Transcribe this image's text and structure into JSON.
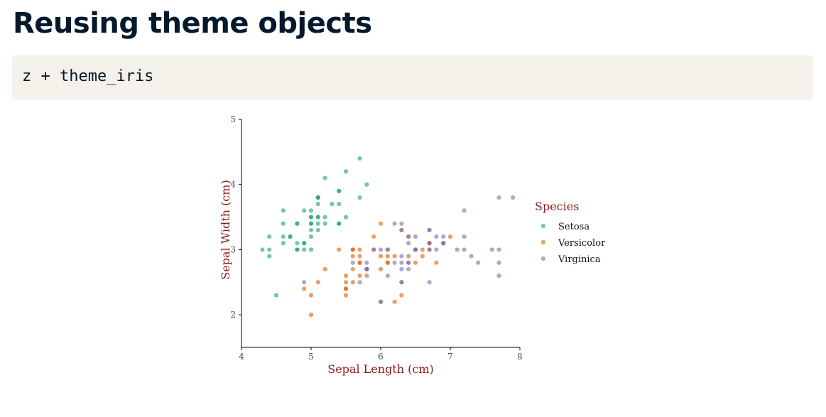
{
  "page": {
    "title": "Reusing theme objects"
  },
  "code": {
    "text": "z + theme_iris"
  },
  "chart_data": {
    "type": "scatter",
    "xlabel": "Sepal Length (cm)",
    "ylabel": "Sepal Width (cm)",
    "xlim": [
      4,
      8
    ],
    "ylim": [
      1.5,
      5
    ],
    "xticks": [
      4,
      5,
      6,
      7,
      8
    ],
    "yticks": [
      2,
      3,
      4,
      5
    ],
    "grid": false,
    "legend": {
      "title": "Species",
      "position": "right"
    },
    "series": [
      {
        "name": "Setosa",
        "color": "#1b9e77",
        "points": [
          [
            5.1,
            3.5
          ],
          [
            4.9,
            3.0
          ],
          [
            4.7,
            3.2
          ],
          [
            4.6,
            3.1
          ],
          [
            5.0,
            3.6
          ],
          [
            5.4,
            3.9
          ],
          [
            4.6,
            3.4
          ],
          [
            5.0,
            3.4
          ],
          [
            4.4,
            2.9
          ],
          [
            4.9,
            3.1
          ],
          [
            5.4,
            3.7
          ],
          [
            4.8,
            3.4
          ],
          [
            4.8,
            3.0
          ],
          [
            4.3,
            3.0
          ],
          [
            5.8,
            4.0
          ],
          [
            5.7,
            4.4
          ],
          [
            5.4,
            3.9
          ],
          [
            5.1,
            3.5
          ],
          [
            5.7,
            3.8
          ],
          [
            5.1,
            3.8
          ],
          [
            5.4,
            3.4
          ],
          [
            5.1,
            3.7
          ],
          [
            4.6,
            3.6
          ],
          [
            5.1,
            3.3
          ],
          [
            4.8,
            3.4
          ],
          [
            5.0,
            3.0
          ],
          [
            5.0,
            3.4
          ],
          [
            5.2,
            3.5
          ],
          [
            5.2,
            3.4
          ],
          [
            4.7,
            3.2
          ],
          [
            4.8,
            3.1
          ],
          [
            5.4,
            3.4
          ],
          [
            5.2,
            4.1
          ],
          [
            5.5,
            4.2
          ],
          [
            4.9,
            3.1
          ],
          [
            5.0,
            3.2
          ],
          [
            5.5,
            3.5
          ],
          [
            4.9,
            3.6
          ],
          [
            4.4,
            3.0
          ],
          [
            5.1,
            3.4
          ],
          [
            5.0,
            3.5
          ],
          [
            4.5,
            2.3
          ],
          [
            4.4,
            3.2
          ],
          [
            5.0,
            3.5
          ],
          [
            5.1,
            3.8
          ],
          [
            4.8,
            3.0
          ],
          [
            5.1,
            3.8
          ],
          [
            4.6,
            3.2
          ],
          [
            5.3,
            3.7
          ],
          [
            5.0,
            3.3
          ]
        ]
      },
      {
        "name": "Versicolor",
        "color": "#d95f02",
        "points": [
          [
            7.0,
            3.2
          ],
          [
            6.4,
            3.2
          ],
          [
            6.9,
            3.1
          ],
          [
            5.5,
            2.3
          ],
          [
            6.5,
            2.8
          ],
          [
            5.7,
            2.8
          ],
          [
            6.3,
            3.3
          ],
          [
            4.9,
            2.4
          ],
          [
            6.6,
            2.9
          ],
          [
            5.2,
            2.7
          ],
          [
            5.0,
            2.0
          ],
          [
            5.9,
            3.0
          ],
          [
            6.0,
            2.2
          ],
          [
            6.1,
            2.9
          ],
          [
            5.6,
            2.9
          ],
          [
            6.7,
            3.1
          ],
          [
            5.6,
            3.0
          ],
          [
            5.8,
            2.7
          ],
          [
            6.2,
            2.2
          ],
          [
            5.6,
            2.5
          ],
          [
            5.9,
            3.2
          ],
          [
            6.1,
            2.8
          ],
          [
            6.3,
            2.5
          ],
          [
            6.1,
            2.8
          ],
          [
            6.4,
            2.9
          ],
          [
            6.6,
            3.0
          ],
          [
            6.8,
            2.8
          ],
          [
            6.7,
            3.0
          ],
          [
            6.0,
            2.9
          ],
          [
            5.7,
            2.6
          ],
          [
            5.5,
            2.4
          ],
          [
            5.5,
            2.4
          ],
          [
            5.8,
            2.7
          ],
          [
            6.0,
            2.7
          ],
          [
            5.4,
            3.0
          ],
          [
            6.0,
            3.4
          ],
          [
            6.7,
            3.1
          ],
          [
            6.3,
            2.3
          ],
          [
            5.6,
            3.0
          ],
          [
            5.5,
            2.5
          ],
          [
            5.5,
            2.6
          ],
          [
            6.1,
            3.0
          ],
          [
            5.8,
            2.6
          ],
          [
            5.0,
            2.3
          ],
          [
            5.6,
            2.7
          ],
          [
            5.7,
            3.0
          ],
          [
            5.7,
            2.9
          ],
          [
            6.2,
            2.9
          ],
          [
            5.1,
            2.5
          ],
          [
            5.7,
            2.8
          ]
        ]
      },
      {
        "name": "Virginica",
        "color": "#7570b3",
        "points": [
          [
            6.3,
            3.3
          ],
          [
            5.8,
            2.7
          ],
          [
            7.1,
            3.0
          ],
          [
            6.3,
            2.9
          ],
          [
            6.5,
            3.0
          ],
          [
            7.6,
            3.0
          ],
          [
            4.9,
            2.5
          ],
          [
            7.3,
            2.9
          ],
          [
            6.7,
            2.5
          ],
          [
            7.2,
            3.6
          ],
          [
            6.5,
            3.2
          ],
          [
            6.4,
            2.7
          ],
          [
            6.8,
            3.0
          ],
          [
            5.7,
            2.5
          ],
          [
            5.8,
            2.8
          ],
          [
            6.4,
            3.2
          ],
          [
            6.5,
            3.0
          ],
          [
            7.7,
            3.8
          ],
          [
            7.7,
            2.6
          ],
          [
            6.0,
            2.2
          ],
          [
            6.9,
            3.2
          ],
          [
            5.6,
            2.8
          ],
          [
            7.7,
            2.8
          ],
          [
            6.3,
            2.7
          ],
          [
            6.7,
            3.3
          ],
          [
            7.2,
            3.2
          ],
          [
            6.2,
            2.8
          ],
          [
            6.1,
            3.0
          ],
          [
            6.4,
            2.8
          ],
          [
            7.2,
            3.0
          ],
          [
            7.4,
            2.8
          ],
          [
            7.9,
            3.8
          ],
          [
            6.4,
            2.8
          ],
          [
            6.3,
            2.8
          ],
          [
            6.1,
            2.6
          ],
          [
            7.7,
            3.0
          ],
          [
            6.3,
            3.4
          ],
          [
            6.4,
            3.1
          ],
          [
            6.0,
            3.0
          ],
          [
            6.9,
            3.1
          ],
          [
            6.7,
            3.1
          ],
          [
            6.9,
            3.1
          ],
          [
            5.8,
            2.7
          ],
          [
            6.8,
            3.2
          ],
          [
            6.7,
            3.3
          ],
          [
            6.7,
            3.0
          ],
          [
            6.3,
            2.5
          ],
          [
            6.5,
            3.0
          ],
          [
            6.2,
            3.4
          ],
          [
            5.9,
            3.0
          ]
        ]
      }
    ]
  }
}
